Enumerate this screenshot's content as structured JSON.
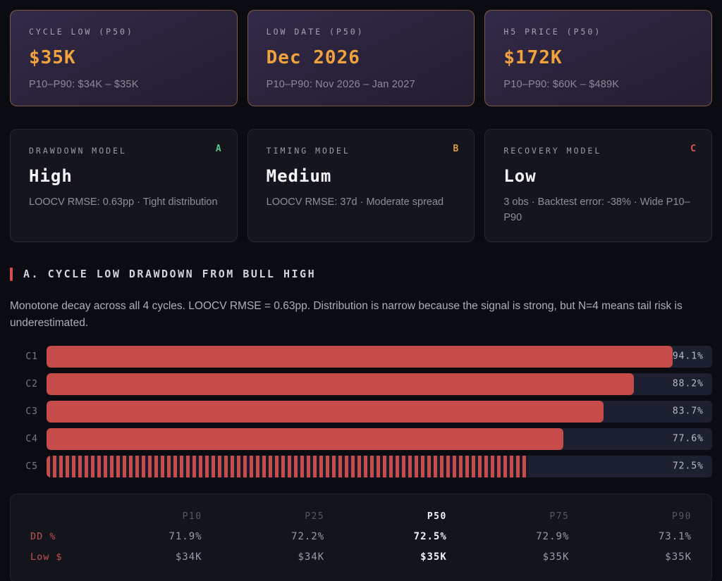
{
  "summary_cards": [
    {
      "label": "CYCLE LOW (P50)",
      "value": "$35K",
      "range": "P10–P90: $34K – $35K"
    },
    {
      "label": "LOW DATE (P50)",
      "value": "Dec 2026",
      "range": "P10–P90: Nov 2026 – Jan 2027"
    },
    {
      "label": "H5 PRICE (P50)",
      "value": "$172K",
      "range": "P10–P90: $60K – $489K"
    }
  ],
  "model_cards": [
    {
      "label": "DRAWDOWN MODEL",
      "grade": "A",
      "grade_color": "#56c786",
      "value": "High",
      "detail": "LOOCV RMSE: 0.63pp · Tight distribution"
    },
    {
      "label": "TIMING MODEL",
      "grade": "B",
      "grade_color": "#e39b3b",
      "value": "Medium",
      "detail": "LOOCV RMSE: 37d · Moderate spread"
    },
    {
      "label": "RECOVERY MODEL",
      "grade": "C",
      "grade_color": "#e0534e",
      "value": "Low",
      "detail": "3 obs · Backtest error: -38% · Wide P10–P90"
    }
  ],
  "section": {
    "title": "A. CYCLE LOW DRAWDOWN FROM BULL HIGH",
    "description": "Monotone decay across all 4 cycles. LOOCV RMSE = 0.63pp. Distribution is narrow because the signal is strong, but N=4 means tail risk is underestimated."
  },
  "chart_data": {
    "type": "bar",
    "orientation": "horizontal",
    "categories": [
      "C1",
      "C2",
      "C3",
      "C4",
      "C5"
    ],
    "values": [
      94.1,
      88.2,
      83.7,
      77.6,
      72.5
    ],
    "labels": [
      "94.1%",
      "88.2%",
      "83.7%",
      "77.6%",
      "72.5%"
    ],
    "forecast_category": "C5",
    "xlim": [
      0,
      100
    ],
    "bar_color": "#c54c49",
    "track_color": "#1d2031",
    "title": "A. CYCLE LOW DRAWDOWN FROM BULL HIGH"
  },
  "table": {
    "columns": [
      "P10",
      "P25",
      "P50",
      "P75",
      "P90"
    ],
    "highlight_column": "P50",
    "rows": [
      {
        "label": "DD %",
        "values": [
          "71.9%",
          "72.2%",
          "72.5%",
          "72.9%",
          "73.1%"
        ]
      },
      {
        "label": "Low $",
        "values": [
          "$34K",
          "$34K",
          "$35K",
          "$35K",
          "$35K"
        ]
      }
    ]
  },
  "colors": {
    "accent_orange": "#f0a23c",
    "accent_red": "#d14f4a",
    "page_background": "#0b0c12"
  }
}
